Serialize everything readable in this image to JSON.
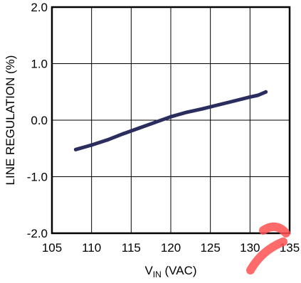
{
  "chart_data": {
    "type": "line",
    "title": "",
    "xlabel_main": "V",
    "xlabel_sub": "IN",
    "xlabel_unit": " (VAC)",
    "ylabel": "LINE REGULATION (%)",
    "xlim": [
      105,
      135
    ],
    "ylim": [
      -2.0,
      2.0
    ],
    "x_ticks": [
      "105",
      "110",
      "115",
      "120",
      "125",
      "130",
      "135"
    ],
    "y_ticks": [
      "2.0",
      "1.0",
      "0.0",
      "-1.0",
      "-2.0"
    ],
    "y_tick_values": [
      2.0,
      1.0,
      0.0,
      -1.0,
      -2.0
    ],
    "x_tick_values": [
      105,
      110,
      115,
      120,
      125,
      130,
      135
    ],
    "grid": true,
    "series": [
      {
        "x": [
          108,
          110,
          112,
          114,
          116,
          118,
          120,
          122,
          124,
          126,
          128,
          130,
          131,
          132
        ],
        "y": [
          -0.52,
          -0.44,
          -0.35,
          -0.24,
          -0.14,
          -0.04,
          0.06,
          0.14,
          0.2,
          0.27,
          0.34,
          0.41,
          0.44,
          0.5
        ],
        "color": "#2b2d5e"
      }
    ]
  },
  "colors": {
    "series": "#2b2d5e",
    "grid": "#000000",
    "watermark": "#ff5050"
  }
}
